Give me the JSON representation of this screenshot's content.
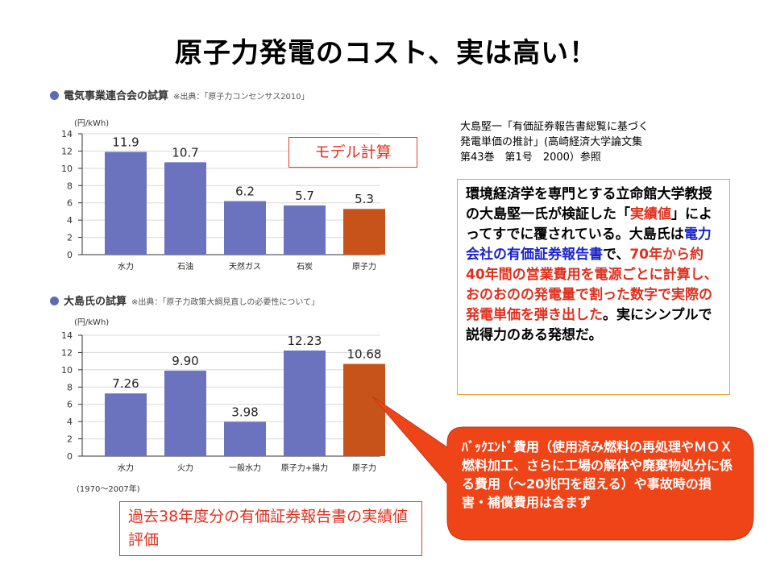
{
  "title": "原子力発電のコスト、実は高い！",
  "model_label": "モデル計算",
  "reference": [
    "大島堅一「有価証券報告書総覧に基づく",
    "発電単価の推計」(高崎経済大学論文集",
    "第43巻　第1号　2000）参照"
  ],
  "explain": {
    "t1": "環境経済学を専門とする立命館大学教授の大島堅一氏が検証した「",
    "t2": "実績値",
    "t3": "」によってすでに覆されている。大島氏は",
    "t4": "電力会社の有価証券報告書",
    "t5": "で、",
    "t6": "70年から約40年間の営業費用を電源ごとに計算し、おのおのの発電量で割った数字で実際の発電単価を弾き出した",
    "t7": "。実にシンプルで説得力のある発想だ。"
  },
  "callout": "ﾊﾞｯｸｴﾝﾄﾞ費用（使用済み燃料の再処理やＭＯＸ燃料加工、さらに工場の解体や廃棄物処分に係る費用（～20兆円を超える）や事故時の損害・補償費用は含まず",
  "actual_label": "過去38年度分の有価証券報告書の実績値評価",
  "chart1_head": {
    "title": "電気事業連合会の試算",
    "source": "※出典：「原子力コンセンサス2010」"
  },
  "chart2_head": {
    "title": "大島氏の試算",
    "source": "※出典：「原子力政策大綱見直しの必要性について」"
  },
  "unit_label": "(円/kWh)",
  "period_label": "(1970〜2007年)",
  "colors": {
    "bar": "#6b73bf",
    "nuclear": "#c8531a",
    "callout": "#ee4418"
  },
  "chart_data": [
    {
      "type": "bar",
      "title": "電気事業連合会の試算",
      "ylabel": "(円/kWh)",
      "ylim": [
        0,
        14
      ],
      "categories": [
        "水力",
        "石油",
        "天然ガス",
        "石炭",
        "原子力"
      ],
      "values": [
        11.9,
        10.7,
        6.2,
        5.7,
        5.3
      ],
      "labels": [
        "11.9",
        "10.7",
        "6.2",
        "5.7",
        "5.3"
      ],
      "yticks": [
        0,
        2,
        4,
        6,
        8,
        10,
        12,
        14
      ]
    },
    {
      "type": "bar",
      "title": "大島氏の試算",
      "ylabel": "(円/kWh)",
      "ylim": [
        0,
        14
      ],
      "categories": [
        "水力",
        "火力",
        "一般水力",
        "原子力+揚力",
        "原子力"
      ],
      "values": [
        7.26,
        9.9,
        3.98,
        12.23,
        10.68
      ],
      "labels": [
        "7.26",
        "9.90",
        "3.98",
        "12.23",
        "10.68"
      ],
      "yticks": [
        0,
        2,
        4,
        6,
        8,
        10,
        12,
        14
      ]
    }
  ]
}
